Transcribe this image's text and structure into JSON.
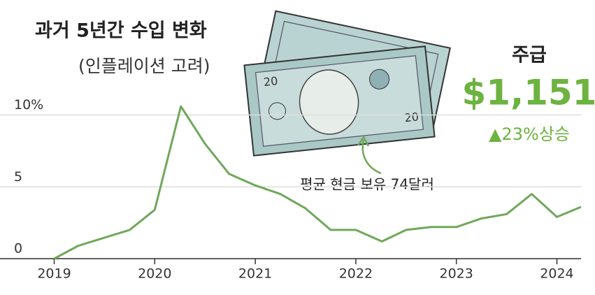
{
  "chart_data": {
    "type": "line",
    "title": "과거 5년간 수입 변화",
    "subtitle": "(인플레이션 고려)",
    "annotation": "평균 현금 보유 74달러",
    "callout": {
      "label": "주급",
      "value": "$1,151",
      "change": "▲23%상승"
    },
    "x": [
      2019.0,
      2019.24,
      2019.75,
      2020.0,
      2020.26,
      2020.5,
      2020.74,
      2021.0,
      2021.25,
      2021.5,
      2021.75,
      2022.0,
      2022.26,
      2022.5,
      2022.75,
      2023.0,
      2023.25,
      2023.5,
      2023.75,
      2024.0,
      2024.24
    ],
    "series": [
      {
        "name": "수입 변화",
        "color": "#6fa85a",
        "values": [
          0,
          0.9,
          2.0,
          3.4,
          10.6,
          8.0,
          5.9,
          5.1,
          4.5,
          3.5,
          2.0,
          2.0,
          1.2,
          2.0,
          2.2,
          2.2,
          2.8,
          3.1,
          4.5,
          2.9,
          3.6
        ]
      }
    ],
    "xlim": [
      2018.6,
      2024.24
    ],
    "xticks": [
      2019,
      2020,
      2021,
      2022,
      2023,
      2024
    ],
    "ylim": [
      0,
      11
    ],
    "yticks": [
      0,
      5,
      {
        "value": 10,
        "label": "10%"
      }
    ],
    "grid": true
  }
}
